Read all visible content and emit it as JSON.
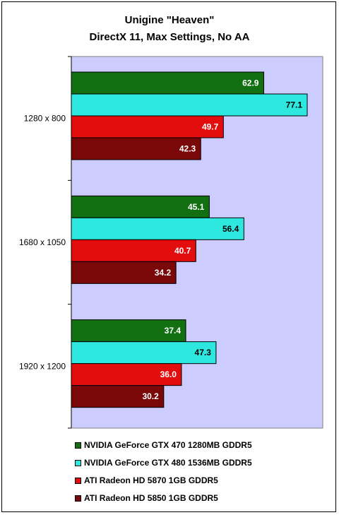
{
  "chart_data": {
    "type": "bar",
    "orientation": "horizontal",
    "title": "Unigine \"Heaven\"",
    "subtitle": "DirectX 11, Max Settings, No AA",
    "categories": [
      "1280 x 800",
      "1680 x 1050",
      "1920 x 1200"
    ],
    "series": [
      {
        "name": "NVIDIA GeForce GTX 470 1280MB GDDR5",
        "color": "#127012",
        "values": [
          62.9,
          45.1,
          37.4
        ]
      },
      {
        "name": "NVIDIA GeForce GTX 480 1536MB GDDR5",
        "color": "#2ee8e0",
        "values": [
          77.1,
          56.4,
          47.3
        ]
      },
      {
        "name": "ATI Radeon HD 5870 1GB GDDR5",
        "color": "#e30d0d",
        "values": [
          49.7,
          40.7,
          36.0
        ]
      },
      {
        "name": "ATI Radeon HD 5850 1GB GDDR5",
        "color": "#7a0808",
        "values": [
          42.3,
          34.2,
          30.2
        ]
      }
    ],
    "value_labels": [
      [
        "62.9",
        "45.1",
        "37.4"
      ],
      [
        "77.1",
        "56.4",
        "47.3"
      ],
      [
        "49.7",
        "40.7",
        "36.0"
      ],
      [
        "42.3",
        "34.2",
        "30.2"
      ]
    ],
    "xlim": [
      0,
      80
    ],
    "grid": false,
    "legend_position": "bottom",
    "plot_background": "#ccccff"
  }
}
